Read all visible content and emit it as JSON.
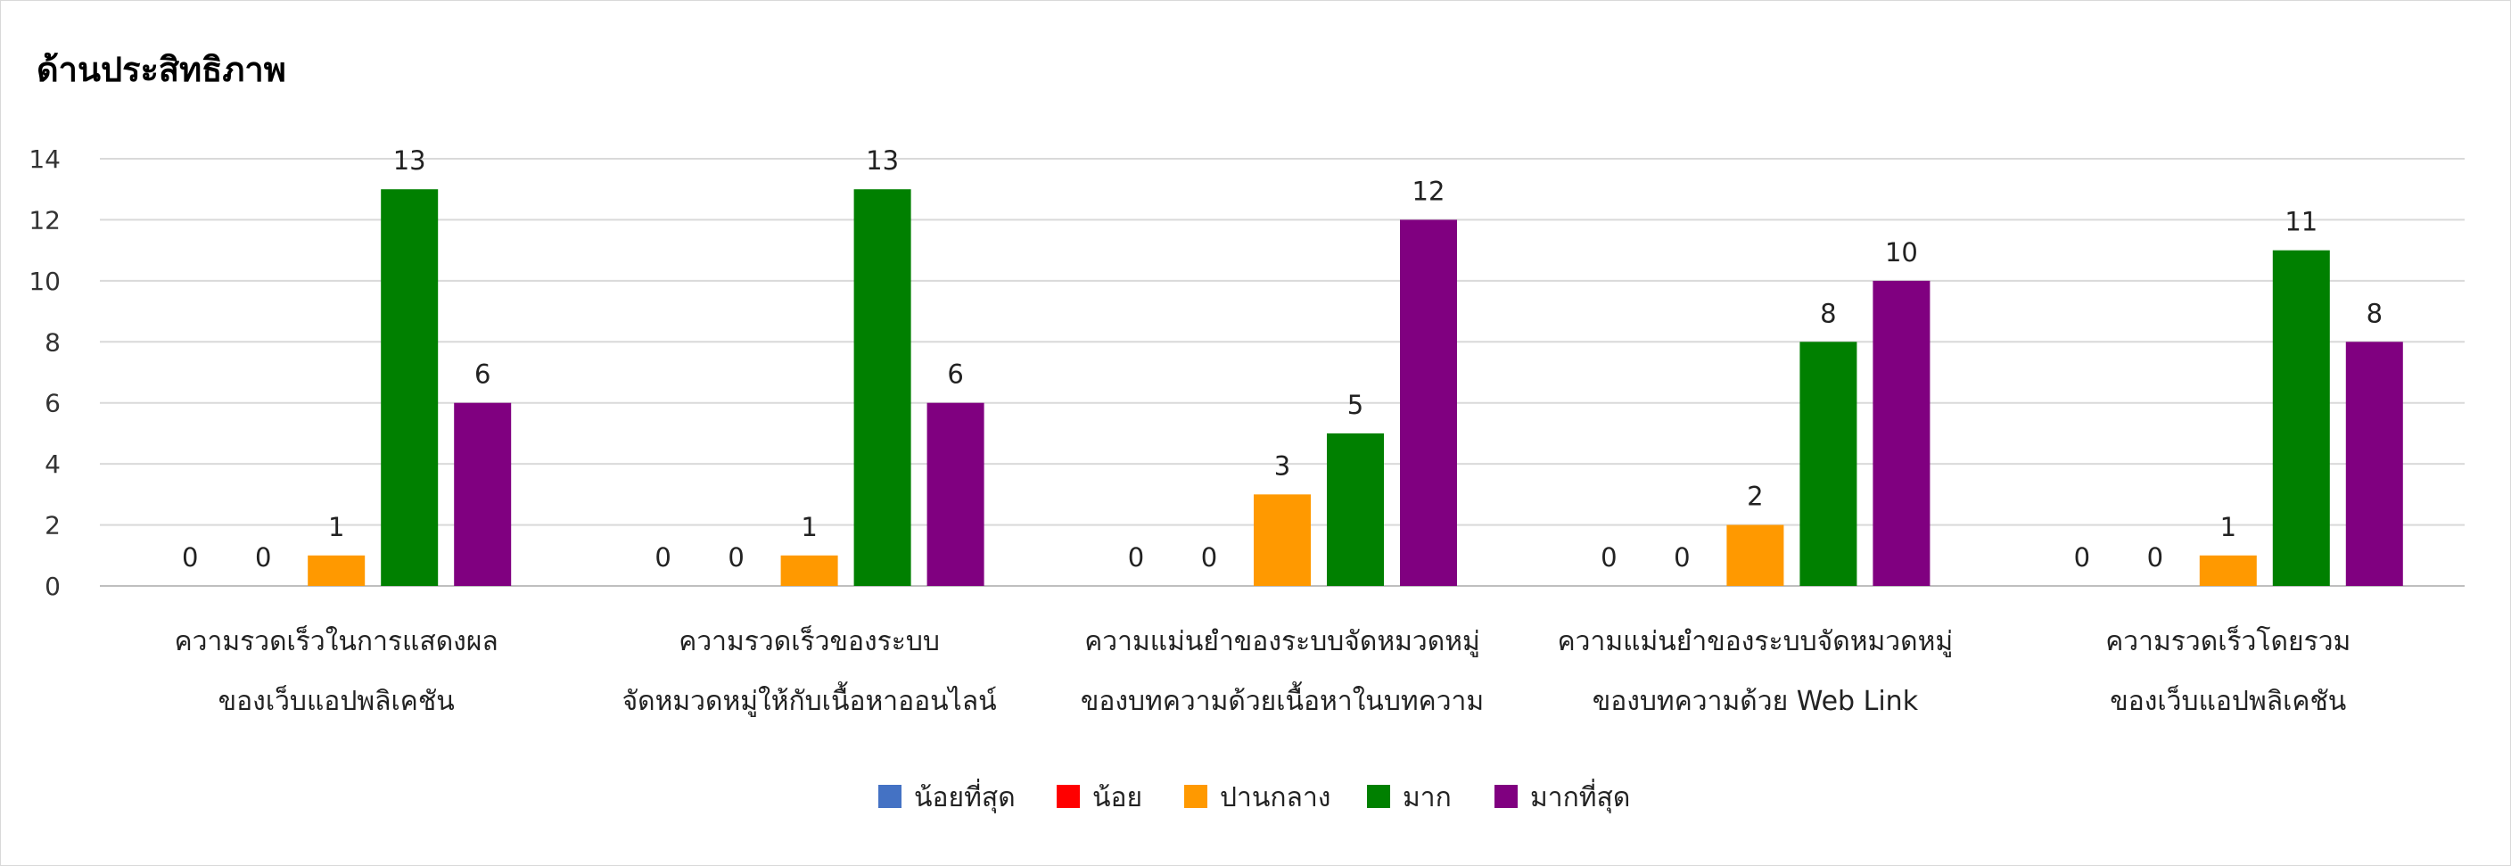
{
  "chart_data": {
    "type": "bar",
    "title": "ด้านประสิทธิภาพ",
    "ylim": [
      0,
      14
    ],
    "yticks": [
      0,
      2,
      4,
      6,
      8,
      10,
      12,
      14
    ],
    "grid": true,
    "legend_position": "bottom",
    "categories": [
      [
        "ความรวดเร็วในการแสดงผล",
        "ของเว็บแอปพลิเคชัน"
      ],
      [
        "ความรวดเร็วของระบบ",
        "จัดหมวดหมู่ให้กับเนื้อหาออนไลน์"
      ],
      [
        "ความแม่นยำของระบบจัดหมวดหมู่",
        "ของบทความด้วยเนื้อหาในบทความ"
      ],
      [
        "ความแม่นยำของระบบจัดหมวดหมู่",
        "ของบทความด้วย Web Link"
      ],
      [
        "ความรวดเร็วโดยรวม",
        "ของเว็บแอปพลิเคชัน"
      ]
    ],
    "series": [
      {
        "name": "น้อยที่สุด",
        "color": "#4472c4",
        "values": [
          0,
          0,
          0,
          0,
          0
        ]
      },
      {
        "name": "น้อย",
        "color": "#ff0000",
        "values": [
          0,
          0,
          0,
          0,
          0
        ]
      },
      {
        "name": "ปานกลาง",
        "color": "#ff9900",
        "values": [
          1,
          1,
          3,
          2,
          1
        ]
      },
      {
        "name": "มาก",
        "color": "#008000",
        "values": [
          13,
          13,
          5,
          8,
          11
        ]
      },
      {
        "name": "มากที่สุด",
        "color": "#800080",
        "values": [
          6,
          6,
          12,
          10,
          8
        ]
      }
    ]
  }
}
